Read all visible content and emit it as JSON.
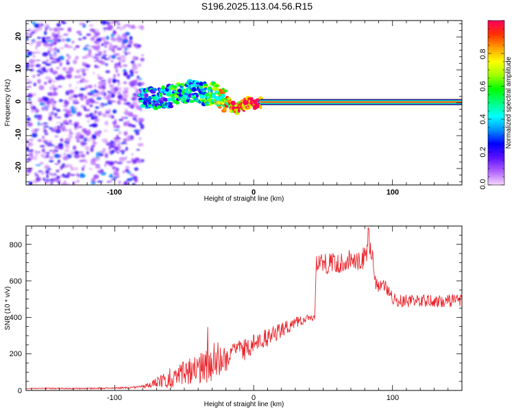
{
  "page": {
    "title": "S196.2025.113.04.56.R15"
  },
  "chart_data": [
    {
      "type": "heatmap",
      "title": "S196.2025.113.04.56.R15",
      "xlabel": "Height of straight line (km)",
      "ylabel": "Frequency (Hz)",
      "xlim": [
        -164,
        150
      ],
      "ylim": [
        -25,
        25
      ],
      "xticks": [
        "-100",
        "0",
        "100"
      ],
      "yticks": [
        "20",
        "10",
        "0",
        "-10",
        "-20"
      ],
      "grid": false,
      "colorbar": {
        "label": "Normalized spectral amplitude",
        "range": [
          0.0,
          1.0
        ],
        "ticks": [
          "0.0",
          "0.2",
          "0.4",
          "0.6",
          "0.8"
        ],
        "colors": [
          "#f5d8ff",
          "#b060ff",
          "#5a10ff",
          "#0000ff",
          "#0090ff",
          "#00ffff",
          "#00ff80",
          "#00ff00",
          "#a0ff00",
          "#ffff00",
          "#ffa000",
          "#ff3000",
          "#ff0060"
        ]
      },
      "noise_region_x": [
        -164,
        -80
      ],
      "signal_ridge": {
        "x": [
          -82,
          -75,
          -68,
          -60,
          -52,
          -45,
          -38,
          -32,
          -28,
          -24,
          -20,
          -16,
          -12,
          -8,
          -4,
          0,
          5,
          20,
          50,
          100,
          150
        ],
        "y": [
          1,
          1.2,
          1.5,
          2,
          3,
          3.5,
          3,
          2.5,
          3,
          1,
          0.5,
          -1,
          -2,
          -1,
          0,
          0,
          0.2,
          0.2,
          0.2,
          0.2,
          0.2
        ],
        "amp": [
          0.3,
          0.35,
          0.35,
          0.4,
          0.45,
          0.4,
          0.45,
          0.55,
          0.6,
          0.65,
          0.7,
          0.8,
          0.85,
          0.85,
          0.9,
          0.95,
          0.98,
          1.0,
          1.0,
          1.0,
          1.0
        ]
      }
    },
    {
      "type": "line",
      "xlabel": "Height of straight line (km)",
      "ylabel": "SNR (10 * v/v)",
      "xlim": [
        -164,
        150
      ],
      "ylim": [
        0,
        900
      ],
      "xticks": [
        "-100",
        "0",
        "100"
      ],
      "yticks": [
        "0",
        "200",
        "400",
        "600",
        "800"
      ],
      "grid": false,
      "color": "#e8242b",
      "series": [
        {
          "x": [
            -164,
            -150,
            -130,
            -110,
            -90,
            -80,
            -75,
            -70,
            -65,
            -60,
            -55,
            -50,
            -45,
            -40,
            -35,
            -30,
            -25,
            -20,
            -15,
            -10,
            -5,
            0,
            5,
            10,
            15,
            20,
            25,
            30,
            35,
            40,
            44,
            45,
            50,
            55,
            60,
            65,
            70,
            75,
            80,
            83,
            86,
            88,
            90,
            95,
            100,
            105,
            110,
            120,
            130,
            140,
            150
          ],
          "y": [
            10,
            12,
            10,
            12,
            15,
            20,
            30,
            40,
            55,
            70,
            80,
            95,
            110,
            120,
            130,
            140,
            160,
            175,
            200,
            215,
            230,
            250,
            270,
            290,
            310,
            330,
            350,
            370,
            385,
            395,
            400,
            700,
            690,
            695,
            700,
            705,
            710,
            715,
            720,
            850,
            700,
            580,
            560,
            570,
            500,
            490,
            490,
            490,
            490,
            490,
            490
          ],
          "amplitude": [
            0,
            4,
            4,
            4,
            5,
            8,
            15,
            30,
            40,
            60,
            70,
            70,
            80,
            80,
            90,
            90,
            80,
            70,
            60,
            60,
            60,
            60,
            55,
            50,
            45,
            40,
            35,
            30,
            25,
            20,
            15,
            60,
            60,
            60,
            60,
            60,
            60,
            60,
            80,
            80,
            40,
            40,
            40,
            40,
            35,
            35,
            35,
            35,
            35,
            35,
            35
          ]
        }
      ]
    }
  ]
}
